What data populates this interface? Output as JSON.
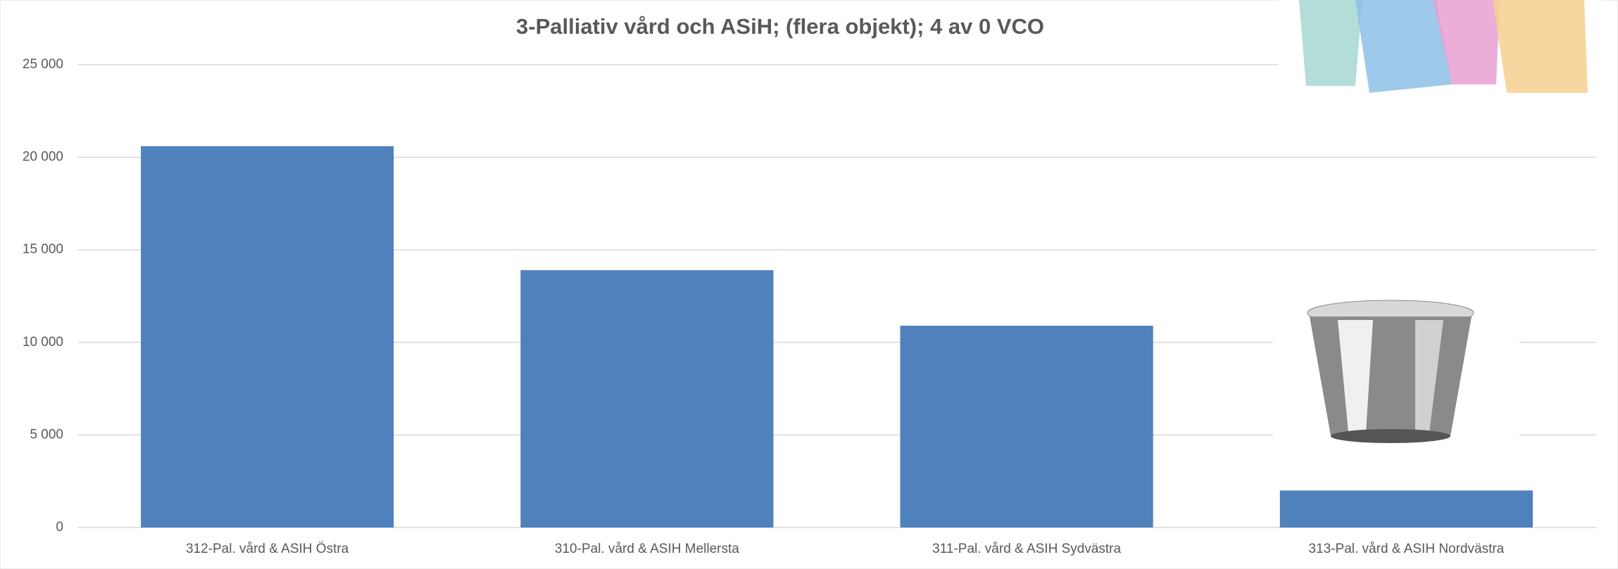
{
  "chart_data": {
    "type": "bar",
    "title": "3-Palliativ vård och ASiH; (flera objekt); 4 av 0 VCO",
    "categories": [
      "312-Pal. vård & ASIH Östra",
      "310-Pal. vård & ASIH Mellersta",
      "311-Pal. vård & ASIH Sydvästra",
      "313-Pal. vård & ASIH Nordvästra"
    ],
    "values": [
      20600,
      13900,
      10900,
      2000
    ],
    "color": "#4f81bd",
    "ylim": [
      0,
      25000
    ],
    "yticks": [
      0,
      {
        "value": 5000,
        "label": "5 000"
      },
      {
        "value": 10000,
        "label": "10 000"
      },
      {
        "value": 15000,
        "label": "15 000"
      },
      {
        "value": 20000,
        "label": "20 000"
      },
      {
        "value": 25000,
        "label": "25 000"
      }
    ],
    "grid": true
  }
}
